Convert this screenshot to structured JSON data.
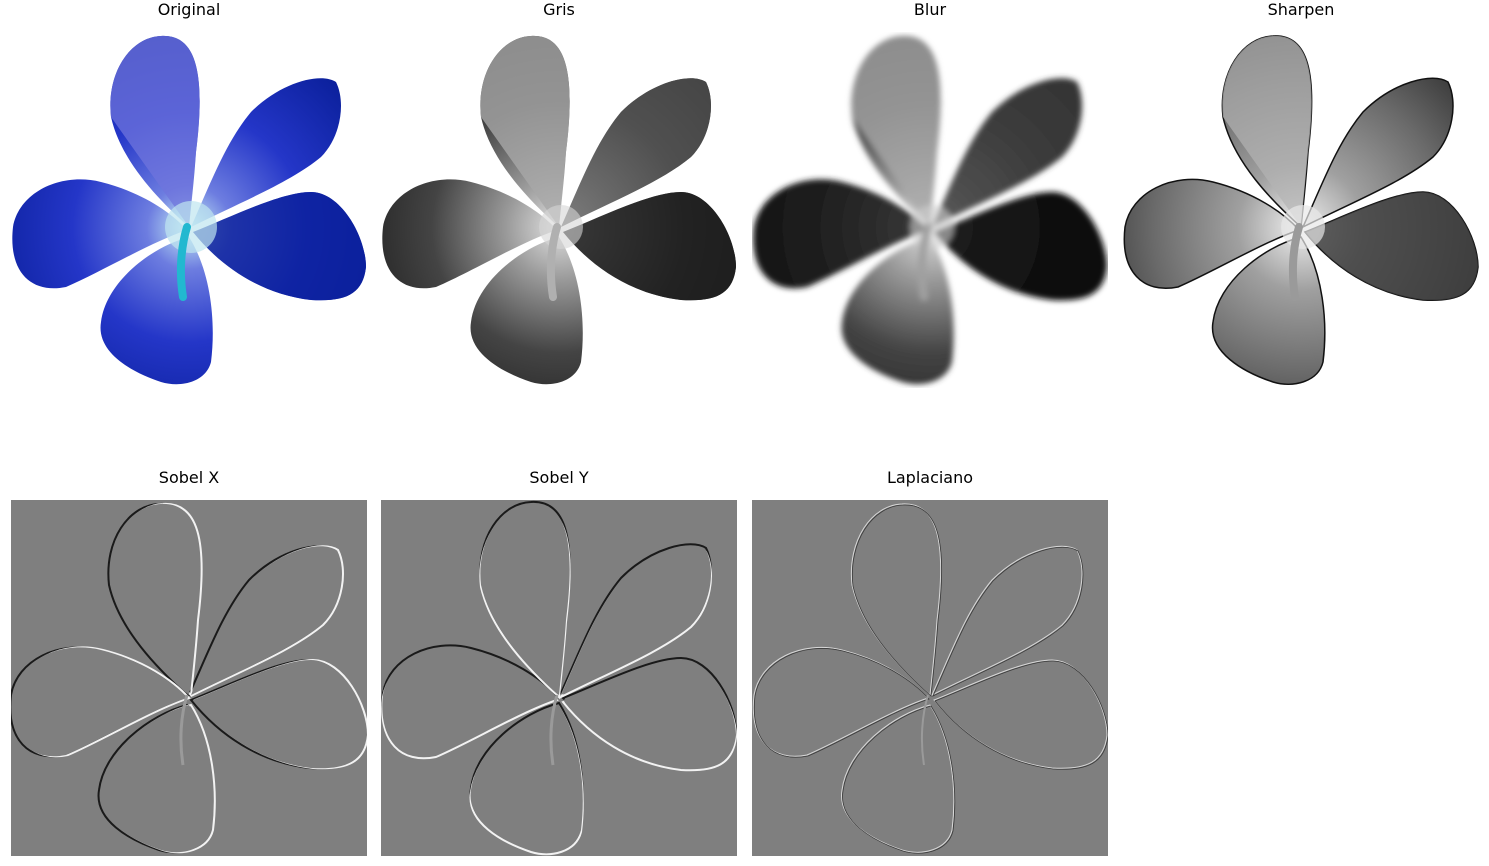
{
  "panels": [
    {
      "title": "Original",
      "image": "flower-original-image"
    },
    {
      "title": "Gris",
      "image": "flower-grayscale-image"
    },
    {
      "title": "Blur",
      "image": "flower-blur-image"
    },
    {
      "title": "Sharpen",
      "image": "flower-sharpen-image"
    },
    {
      "title": "Sobel X",
      "image": "flower-sobel-x-image"
    },
    {
      "title": "Sobel Y",
      "image": "flower-sobel-y-image"
    },
    {
      "title": "Laplaciano",
      "image": "flower-laplacian-image"
    }
  ],
  "colors": {
    "background": "#ffffff",
    "edge_background": "#7f7f7f",
    "original_petal": "#1f2fd0",
    "original_petal_dark": "#0a1f9a",
    "original_center": "#9fd8e8",
    "stamen": "#22b8d0"
  }
}
